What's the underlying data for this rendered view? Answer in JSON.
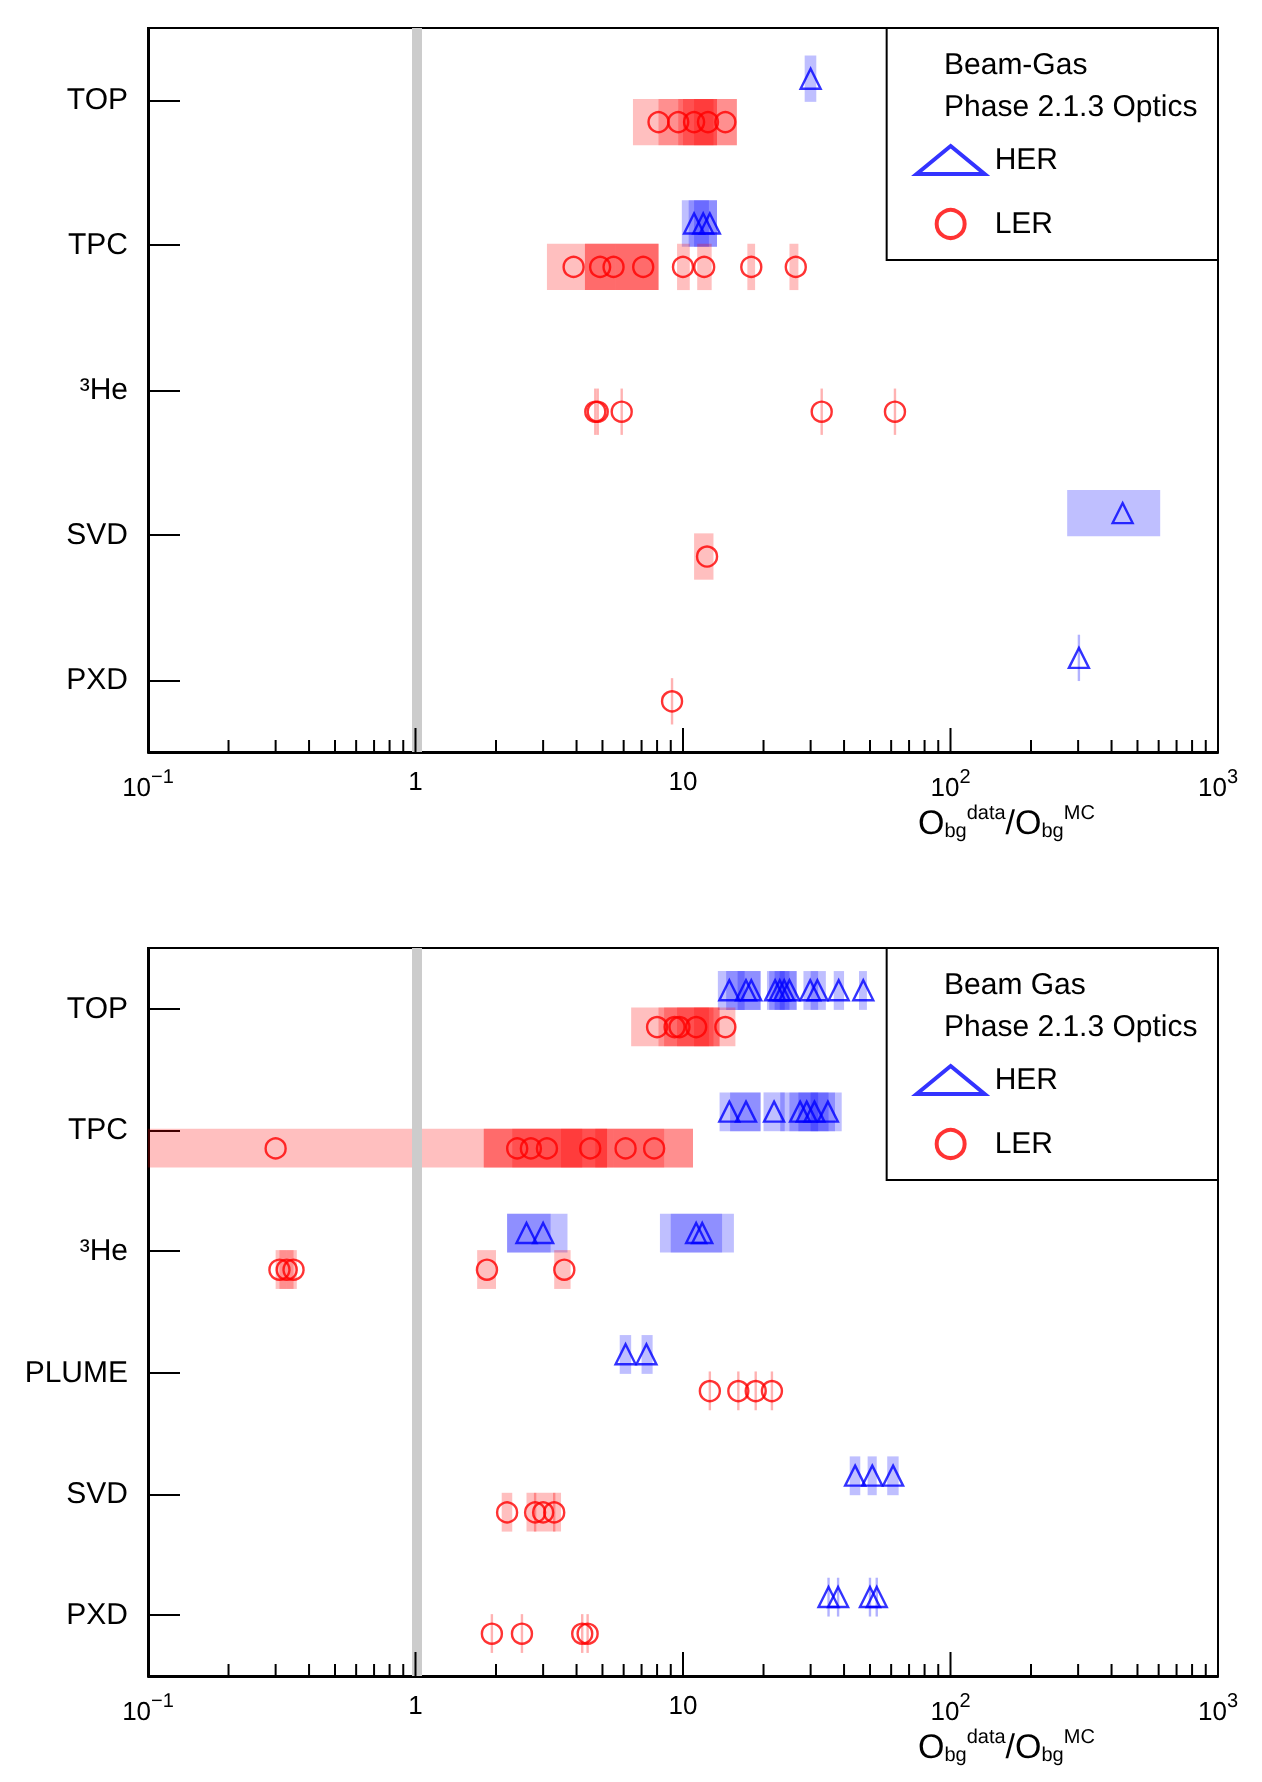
{
  "chart_data": [
    {
      "type": "scatter",
      "orientation": "horizontal",
      "title": "Beam-Gas",
      "subtitle": "Phase 2.1.3 Optics",
      "xlabel": "O$_{bg}$$^{data}$/O$_{bg}$$^{MC}$",
      "categories": [
        "TOP",
        "TPC",
        "³He",
        "SVD",
        "PXD"
      ],
      "log": "x",
      "xlim": [
        0.1,
        1000
      ],
      "xticks": [
        {
          "value": 0.1,
          "label": "10$^{−1}$"
        },
        {
          "value": 0.2,
          "label": null
        },
        {
          "value": 0.3,
          "label": null
        },
        {
          "value": 0.4,
          "label": null
        },
        {
          "value": 0.5,
          "label": null
        },
        {
          "value": 0.6,
          "label": null
        },
        {
          "value": 0.7,
          "label": null
        },
        {
          "value": 0.8,
          "label": null
        },
        {
          "value": 0.9,
          "label": null
        },
        {
          "value": 1,
          "label": "1"
        },
        {
          "value": 2,
          "label": null
        },
        {
          "value": 3,
          "label": null
        },
        {
          "value": 4,
          "label": null
        },
        {
          "value": 5,
          "label": null
        },
        {
          "value": 6,
          "label": null
        },
        {
          "value": 7,
          "label": null
        },
        {
          "value": 8,
          "label": null
        },
        {
          "value": 9,
          "label": null
        },
        {
          "value": 10,
          "label": "10"
        },
        {
          "value": 20,
          "label": null
        },
        {
          "value": 30,
          "label": null
        },
        {
          "value": 40,
          "label": null
        },
        {
          "value": 50,
          "label": null
        },
        {
          "value": 60,
          "label": null
        },
        {
          "value": 70,
          "label": null
        },
        {
          "value": 80,
          "label": null
        },
        {
          "value": 90,
          "label": null
        },
        {
          "value": 100,
          "label": "10$^{2}$"
        },
        {
          "value": 200,
          "label": null
        },
        {
          "value": 300,
          "label": null
        },
        {
          "value": 400,
          "label": null
        },
        {
          "value": 500,
          "label": null
        },
        {
          "value": 600,
          "label": null
        },
        {
          "value": 700,
          "label": null
        },
        {
          "value": 800,
          "label": null
        },
        {
          "value": 900,
          "label": null
        },
        {
          "value": 1000,
          "label": "10$^{3}$"
        }
      ],
      "grid": false,
      "legend": "top right",
      "ref_lines": [
        {
          "axis": "x",
          "value": 1,
          "color": "#cccccc"
        }
      ],
      "series": [
        {
          "name": "HER",
          "marker": "triangle",
          "color": "#0000ff",
          "x": [
            "TOP",
            "TPC",
            "TPC",
            "TPC",
            "SVD",
            "PXD"
          ],
          "values": [
            30,
            11,
            11.9,
            12.6,
            440,
            302
          ],
          "errors": [
            [
              28.5,
              31.5
            ],
            [
              9.9,
              12.5
            ],
            [
              10.5,
              13.4
            ],
            [
              11,
              13.4
            ],
            [
              273,
              608
            ],
            null
          ]
        },
        {
          "name": "LER",
          "marker": "circle",
          "color": "#ff0000",
          "x": [
            "TOP",
            "TOP",
            "TOP",
            "TOP",
            "TOP",
            "TPC",
            "TPC",
            "TPC",
            "TPC",
            "TPC",
            "TPC",
            "TPC",
            "TPC",
            "³He",
            "³He",
            "³He",
            "³He",
            "³He",
            "SVD",
            "PXD"
          ],
          "values": [
            8.1,
            9.6,
            11,
            12.4,
            14.4,
            3.9,
            4.9,
            5.5,
            7.1,
            10,
            12,
            18,
            26.4,
            4.7,
            4.8,
            5.9,
            33,
            62,
            12.3,
            9.1
          ],
          "errors": [
            [
              6.5,
              15.9
            ],
            [
              8.1,
              13.4
            ],
            [
              9.6,
              13
            ],
            [
              10,
              13.4
            ],
            [
              11,
              15.9
            ],
            [
              3.1,
              8.1
            ],
            [
              4.3,
              5.6
            ],
            [
              4.3,
              8.1
            ],
            [
              5.6,
              8.1
            ],
            [
              9.5,
              10.6
            ],
            [
              11.3,
              12.8
            ],
            [
              17.4,
              18.6
            ],
            [
              25,
              27
            ],
            null,
            null,
            null,
            null,
            null,
            [
              11,
              13
            ],
            null
          ]
        }
      ]
    },
    {
      "type": "scatter",
      "orientation": "horizontal",
      "title": "Beam Gas",
      "subtitle": "Phase 2.1.3 Optics",
      "xlabel": "O$_{bg}$$^{data}$/O$_{bg}$$^{MC}$",
      "categories": [
        "TOP",
        "TPC",
        "³He",
        "PLUME",
        "SVD",
        "PXD"
      ],
      "log": "x",
      "xlim": [
        0.1,
        1000
      ],
      "xticks": [
        {
          "value": 0.1,
          "label": "10$^{−1}$"
        },
        {
          "value": 0.2,
          "label": null
        },
        {
          "value": 0.3,
          "label": null
        },
        {
          "value": 0.4,
          "label": null
        },
        {
          "value": 0.5,
          "label": null
        },
        {
          "value": 0.6,
          "label": null
        },
        {
          "value": 0.7,
          "label": null
        },
        {
          "value": 0.8,
          "label": null
        },
        {
          "value": 0.9,
          "label": null
        },
        {
          "value": 1,
          "label": "1"
        },
        {
          "value": 2,
          "label": null
        },
        {
          "value": 3,
          "label": null
        },
        {
          "value": 4,
          "label": null
        },
        {
          "value": 5,
          "label": null
        },
        {
          "value": 6,
          "label": null
        },
        {
          "value": 7,
          "label": null
        },
        {
          "value": 8,
          "label": null
        },
        {
          "value": 9,
          "label": null
        },
        {
          "value": 10,
          "label": "10"
        },
        {
          "value": 20,
          "label": null
        },
        {
          "value": 30,
          "label": null
        },
        {
          "value": 40,
          "label": null
        },
        {
          "value": 50,
          "label": null
        },
        {
          "value": 60,
          "label": null
        },
        {
          "value": 70,
          "label": null
        },
        {
          "value": 80,
          "label": null
        },
        {
          "value": 90,
          "label": null
        },
        {
          "value": 100,
          "label": "10$^{2}$"
        },
        {
          "value": 200,
          "label": null
        },
        {
          "value": 300,
          "label": null
        },
        {
          "value": 400,
          "label": null
        },
        {
          "value": 500,
          "label": null
        },
        {
          "value": 600,
          "label": null
        },
        {
          "value": 700,
          "label": null
        },
        {
          "value": 800,
          "label": null
        },
        {
          "value": 900,
          "label": null
        },
        {
          "value": 1000,
          "label": "10$^{3}$"
        }
      ],
      "grid": false,
      "legend": "top right",
      "ref_lines": [
        {
          "axis": "x",
          "value": 1,
          "color": "#cccccc"
        }
      ],
      "series": [
        {
          "name": "HER",
          "marker": "triangle",
          "color": "#0000ff",
          "x": [
            "TOP",
            "TOP",
            "TOP",
            "TOP",
            "TOP",
            "TOP",
            "TOP",
            "TOP",
            "TOP",
            "TOP",
            "TOP",
            "TPC",
            "TPC",
            "TPC",
            "TPC",
            "TPC",
            "TPC",
            "TPC",
            "³He",
            "³He",
            "³He",
            "³He",
            "PLUME",
            "PLUME",
            "SVD",
            "SVD",
            "SVD",
            "PXD",
            "PXD",
            "PXD",
            "PXD"
          ],
          "values": [
            14.9,
            17.2,
            18,
            22.1,
            23,
            23.9,
            25,
            29.9,
            31.8,
            38.2,
            47.2,
            14.9,
            17.2,
            21.9,
            27.4,
            29,
            31,
            34.8,
            2.6,
            3,
            11.2,
            11.8,
            6.1,
            7.3,
            44,
            51,
            61,
            35,
            38,
            50,
            53
          ],
          "errors": [
            [
              13.5,
              17
            ],
            [
              14.5,
              19.5
            ],
            [
              16,
              19.5
            ],
            [
              20.6,
              24
            ],
            [
              21,
              25
            ],
            [
              22,
              26.6
            ],
            [
              23,
              26.6
            ],
            [
              28.2,
              32
            ],
            [
              30,
              34.2
            ],
            [
              36.6,
              40
            ],
            [
              45.5,
              48.7
            ],
            [
              13.7,
              19.5
            ],
            [
              15,
              19.5
            ],
            [
              20,
              24
            ],
            [
              23.1,
              32
            ],
            [
              25,
              35
            ],
            [
              27,
              37
            ],
            [
              30,
              39.2
            ],
            [
              2.2,
              3.2
            ],
            [
              2.2,
              3.7
            ],
            [
              8.2,
              15.5
            ],
            [
              9,
              14
            ],
            [
              5.8,
              6.4
            ],
            [
              7,
              7.7
            ],
            [
              42,
              46
            ],
            [
              49,
              53
            ],
            [
              58,
              64
            ],
            null,
            null,
            null,
            null
          ]
        },
        {
          "name": "LER",
          "marker": "circle",
          "color": "#ff0000",
          "x": [
            "TOP",
            "TOP",
            "TOP",
            "TOP",
            "TOP",
            "TPC",
            "TPC",
            "TPC",
            "TPC",
            "TPC",
            "TPC",
            "TPC",
            "³He",
            "³He",
            "³He",
            "³He",
            "³He",
            "PLUME",
            "PLUME",
            "PLUME",
            "PLUME",
            "SVD",
            "SVD",
            "SVD",
            "SVD",
            "PXD",
            "PXD",
            "PXD",
            "PXD"
          ],
          "values": [
            8,
            9.3,
            9.7,
            11.2,
            14.4,
            0.3,
            2.4,
            2.7,
            3.1,
            4.5,
            6.1,
            7.8,
            0.31,
            0.33,
            0.35,
            1.85,
            3.6,
            12.6,
            16.1,
            18.7,
            21.5,
            2.2,
            2.8,
            3,
            3.3,
            1.93,
            2.5,
            4.2,
            4.4
          ],
          "errors": [
            [
              6.4,
              13.7
            ],
            [
              8.1,
              13
            ],
            [
              8.5,
              12.5
            ],
            [
              9.5,
              13.7
            ],
            [
              11,
              15.7
            ],
            [
              0.1,
              10.9
            ],
            [
              1.8,
              5.2
            ],
            [
              1.8,
              4.2
            ],
            [
              2.3,
              5.2
            ],
            [
              3.5,
              5.5
            ],
            [
              4.7,
              8.5
            ],
            [
              5.5,
              10.9
            ],
            [
              0.3,
              0.33
            ],
            [
              0.31,
              0.35
            ],
            [
              0.33,
              0.36
            ],
            [
              1.7,
              2
            ],
            [
              3.3,
              3.8
            ],
            null,
            null,
            null,
            null,
            [
              2.1,
              2.3
            ],
            null,
            [
              2.6,
              3.5
            ],
            null,
            null,
            null,
            null,
            null
          ]
        }
      ]
    }
  ]
}
